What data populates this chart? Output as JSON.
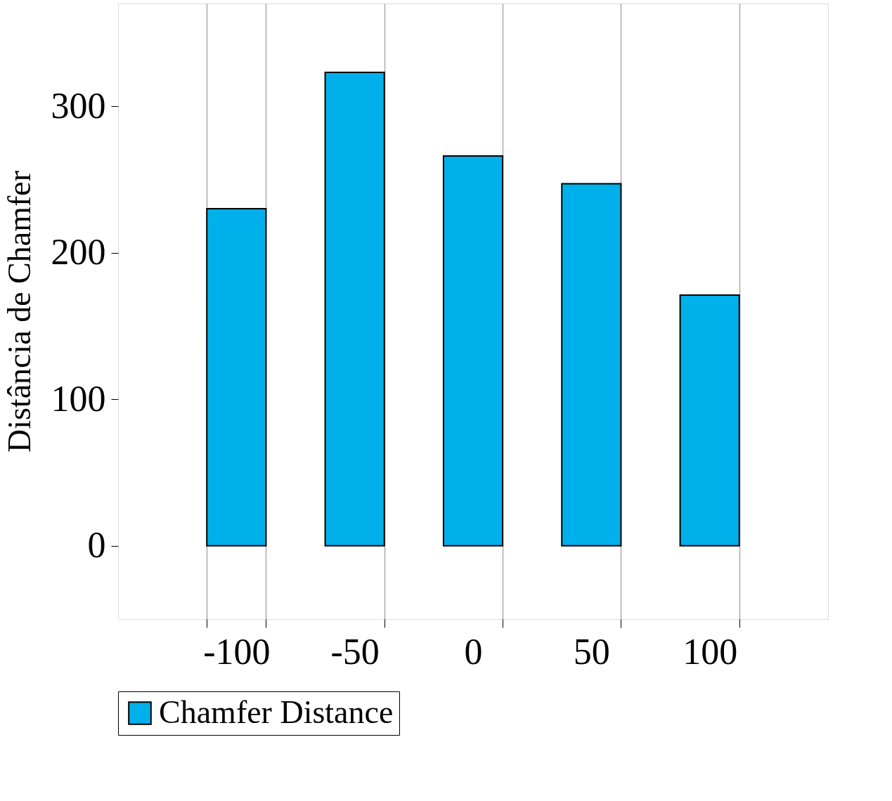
{
  "chart_data": {
    "type": "bar",
    "ylabel": "Distância de Chamfer",
    "categories": [
      "-100",
      "-50",
      "0",
      "50",
      "100"
    ],
    "series": [
      {
        "name": "Chamfer Distance",
        "color": "#00b0eb",
        "values": [
          230,
          323,
          266,
          247,
          171
        ]
      }
    ],
    "ylim": [
      -50,
      370
    ],
    "yticks": [
      0,
      100,
      200,
      300
    ],
    "grid": "x",
    "legend": "bottom"
  }
}
